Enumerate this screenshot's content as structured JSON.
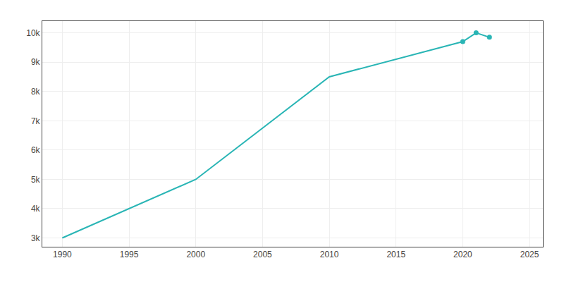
{
  "chart_data": {
    "type": "line",
    "series": [
      {
        "type": "line",
        "color": "#29b5b5",
        "x": [
          1990,
          2000,
          2010,
          2020,
          2021,
          2022
        ],
        "values": [
          3000,
          5000,
          8500,
          9700,
          10000,
          9850
        ]
      },
      {
        "type": "scatter",
        "marker": "circle",
        "color": "#29b5b5",
        "x": [
          2020,
          2021,
          2022
        ],
        "values": [
          9700,
          10000,
          9850
        ]
      }
    ],
    "xlim": [
      1988.5,
      2026
    ],
    "xticks": [
      1990,
      1995,
      2000,
      2005,
      2010,
      2015,
      2020,
      2025
    ],
    "ylim": [
      2700,
      10400
    ],
    "yticks": [
      {
        "value": 3000,
        "label": "3k"
      },
      {
        "value": 4000,
        "label": "4k"
      },
      {
        "value": 5000,
        "label": "5k"
      },
      {
        "value": 6000,
        "label": "6k"
      },
      {
        "value": 7000,
        "label": "7k"
      },
      {
        "value": 8000,
        "label": "8k"
      },
      {
        "value": 9000,
        "label": "9k"
      },
      {
        "value": 10000,
        "label": "10k"
      }
    ],
    "grid": true
  }
}
